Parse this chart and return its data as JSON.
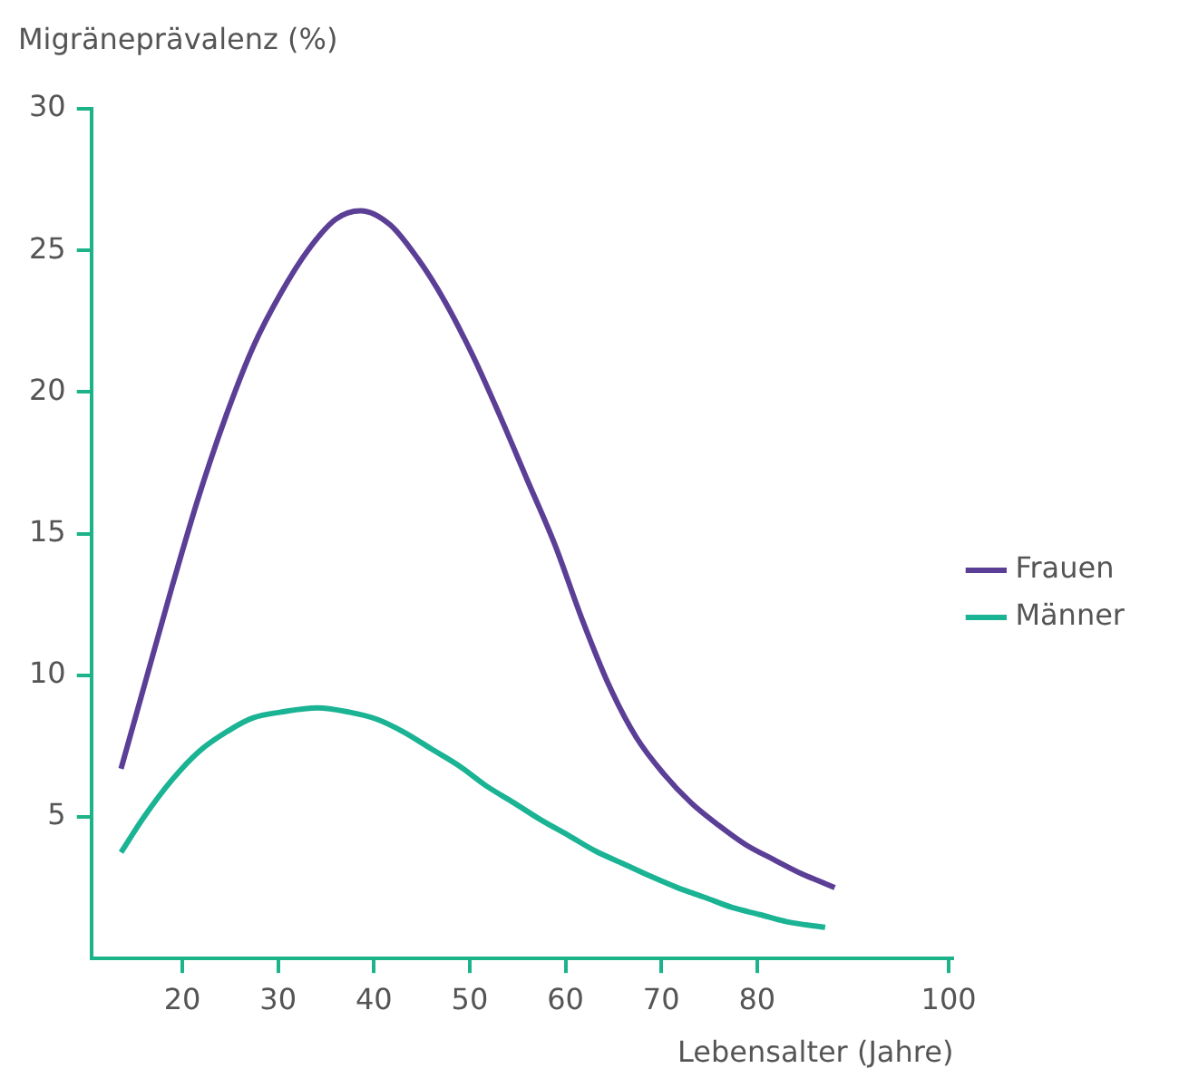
{
  "chart_data": {
    "type": "line",
    "ylabel": "Migräneprävalenz (%)",
    "xlabel": "Lebensalter (Jahre)",
    "xlim": [
      10.5,
      100.5
    ],
    "xticks": [
      20,
      30,
      40,
      50,
      60,
      70,
      80,
      100
    ],
    "ylim": [
      0,
      30
    ],
    "yticks": [
      5,
      10,
      15,
      20,
      25,
      30
    ],
    "grid": false,
    "legend": "right",
    "marker": "none",
    "line_style": "solid",
    "series": [
      {
        "name": "Frauen",
        "color": "#5b3f96",
        "x": [
          13.6,
          16,
          18.9,
          21.7,
          24.6,
          27.4,
          30.3,
          33.1,
          36,
          38.6,
          41.7,
          44.6,
          47.4,
          50.3,
          53.1,
          56,
          58.9,
          61.7,
          64.6,
          67.4,
          70.3,
          73.1,
          76,
          78.9,
          81.7,
          84.6,
          86.7,
          88.1
        ],
        "values": [
          6.7,
          9.6,
          13.1,
          16.3,
          19.2,
          21.6,
          23.5,
          25,
          26.1,
          26.4,
          25.9,
          24.7,
          23.2,
          21.3,
          19.2,
          16.9,
          14.6,
          12,
          9.6,
          7.8,
          6.5,
          5.5,
          4.7,
          4,
          3.5,
          3,
          2.7,
          2.5
        ]
      },
      {
        "name": "Männer",
        "color": "#1ab394",
        "x": [
          13.6,
          16,
          18.9,
          21.7,
          24.6,
          27.4,
          30.3,
          34.1,
          37.4,
          40.3,
          43.1,
          46,
          48.9,
          51.7,
          54.6,
          57.4,
          60.3,
          63.1,
          66,
          68.9,
          71.7,
          74.6,
          77.4,
          80.3,
          83.1,
          87.1
        ],
        "values": [
          3.75,
          5,
          6.3,
          7.3,
          8,
          8.5,
          8.7,
          8.85,
          8.7,
          8.45,
          8,
          7.4,
          6.8,
          6.1,
          5.5,
          4.9,
          4.35,
          3.8,
          3.35,
          2.9,
          2.5,
          2.15,
          1.8,
          1.55,
          1.3,
          1.1
        ]
      }
    ]
  }
}
